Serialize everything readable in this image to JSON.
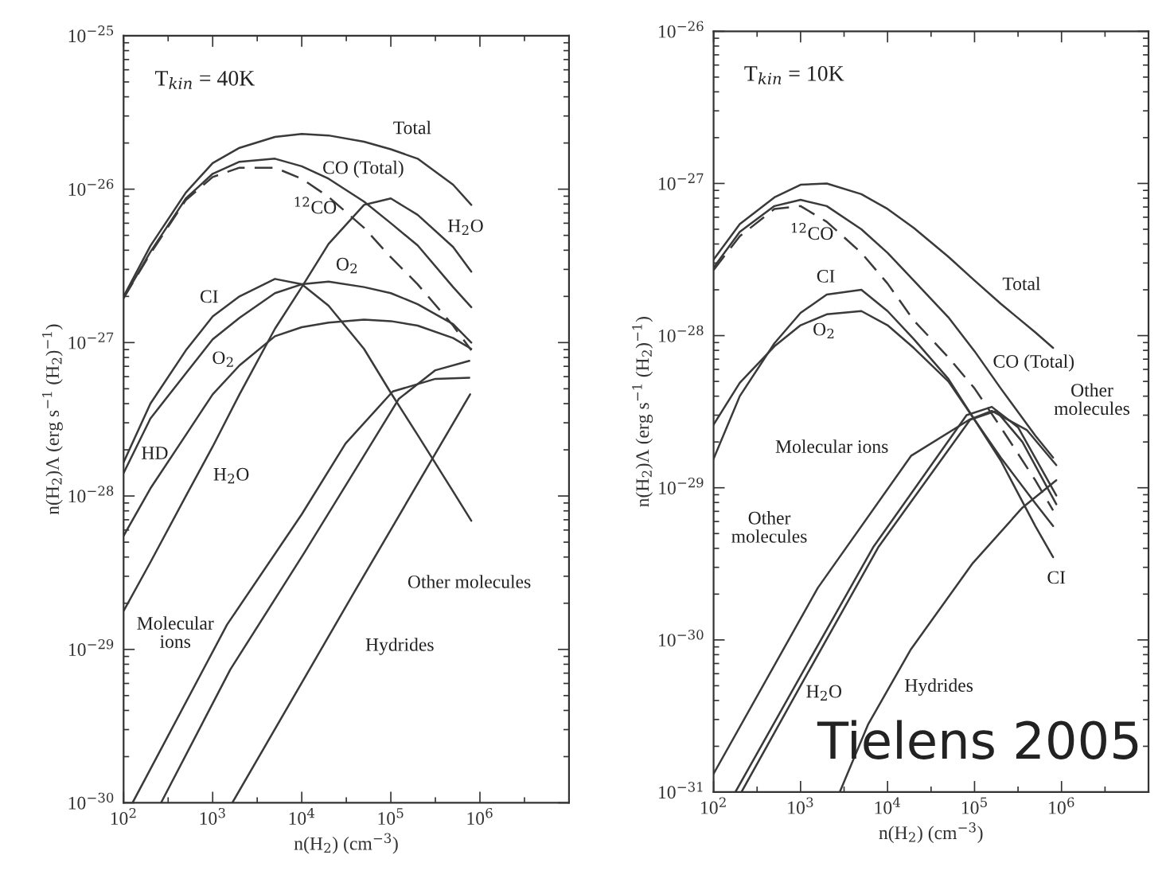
{
  "chart_data": [
    {
      "type": "line",
      "log": "xy",
      "grid": false,
      "line_style": "solid",
      "marker": "none",
      "xlabel": "n(H$_{2}$) (cm$^{−3}$)",
      "ylabel": "n(H$_{2}$)Λ (erg s$^{−1}$ (H$_{2}$)$^{−1}$)",
      "xlim": [
        100,
        10000000
      ],
      "ylim": [
        1e-30,
        1e-25
      ],
      "xticks": [
        {
          "value": 100,
          "label": "10$^{2}$"
        },
        {
          "value": 1000,
          "label": "10$^{3}$"
        },
        {
          "value": 10000,
          "label": "10$^{4}$"
        },
        {
          "value": 100000,
          "label": "10$^{5}$"
        },
        {
          "value": 1000000,
          "label": "10$^{6}$"
        }
      ],
      "yticks": [
        {
          "value": 1e-30,
          "label": "10$^{−30}$"
        },
        {
          "value": 1e-29,
          "label": "10$^{−29}$"
        },
        {
          "value": 1e-28,
          "label": "10$^{−28}$"
        },
        {
          "value": 1e-27,
          "label": "10$^{−27}$"
        },
        {
          "value": 1e-26,
          "label": "10$^{−26}$"
        },
        {
          "value": 1e-25,
          "label": "10$^{−25}$"
        }
      ],
      "x": [
        100,
        200,
        500,
        1000,
        2000,
        5000,
        10000,
        20000,
        50000,
        100000,
        200000,
        500000,
        800000
      ],
      "series": [
        {
          "color": "#3a3a3a",
          "values": [
            2e-27,
            4.27e-27,
            9.5e-27,
            1.48e-26,
            1.86e-26,
            2.19e-26,
            2.29e-26,
            2.24e-26,
            2.04e-26,
            1.82e-26,
            1.58e-26,
            1.07e-26,
            7.9e-27
          ]
        },
        {
          "color": "#3a3a3a",
          "values": [
            1.95e-27,
            3.9e-27,
            8.7e-27,
            1.26e-26,
            1.51e-26,
            1.58e-26,
            1.41e-26,
            1.17e-26,
            8.3e-27,
            6e-27,
            4.3e-27,
            2.3e-27,
            1.7e-27
          ]
        },
        {
          "color": "#3a3a3a",
          "line_style": "dashed",
          "values": [
            1.95e-27,
            3.8e-27,
            8.5e-27,
            1.2e-26,
            1.38e-26,
            1.38e-26,
            1.17e-26,
            8.9e-27,
            5.6e-27,
            3.6e-27,
            2.4e-27,
            1.29e-27,
            8.9e-28
          ]
        },
        {
          "color": "#3a3a3a",
          "values": [
            1.78e-29,
            3.7e-29,
            1e-28,
            2.1e-28,
            4.6e-28,
            1.23e-27,
            2.3e-27,
            4.4e-27,
            7.9e-27,
            8.7e-27,
            6.8e-27,
            4.2e-27,
            2.9e-27
          ]
        },
        {
          "color": "#3a3a3a",
          "values": [
            1.66e-28,
            4e-28,
            8.9e-28,
            1.48e-27,
            2e-27,
            2.6e-27,
            2.4e-27,
            1.74e-27,
            9.1e-28,
            4.7e-28,
            2.5e-28,
            1.07e-28,
            6.9e-29
          ]
        },
        {
          "color": "#3a3a3a",
          "values": [
            1.41e-28,
            3.2e-28,
            6.3e-28,
            1.05e-27,
            1.45e-27,
            2.1e-27,
            2.4e-27,
            2.5e-27,
            2.3e-27,
            2.1e-27,
            1.78e-27,
            1.32e-27,
            1e-27
          ]
        },
        {
          "color": "#3a3a3a",
          "values": [
            5.5e-29,
            1.12e-28,
            2.5e-28,
            4.6e-28,
            7.1e-28,
            1.1e-27,
            1.26e-27,
            1.35e-27,
            1.41e-27,
            1.38e-27,
            1.29e-27,
            1.07e-27,
            9.1e-28
          ]
        },
        {
          "color": "#3a3a3a",
          "x": [
            126,
            1450,
            10000,
            31000,
            105000,
            316000,
            760000
          ],
          "values": [
            1e-30,
            1.45e-29,
            7.6e-29,
            2.2e-28,
            4.8e-28,
            5.8e-28,
            5.9e-28
          ]
        },
        {
          "color": "#3a3a3a",
          "x": [
            263,
            1580,
            10500,
            37000,
            123000,
            316000,
            760000
          ],
          "values": [
            1e-30,
            7.4e-30,
            4.2e-29,
            1.38e-28,
            4.3e-28,
            6.6e-28,
            7.6e-28
          ]
        },
        {
          "color": "#3a3a3a",
          "x": [
            1660,
            42700,
            776000
          ],
          "values": [
            1e-30,
            2.6e-29,
            4.6e-28
          ]
        }
      ],
      "annotations": [
        "T$_{kin}$ = 40K",
        "Total",
        "CO (Total)",
        "$^{12}$CO",
        "H$_{2}$O",
        "O$_{2}$",
        "CI",
        "O$_{2}$",
        "HD",
        "H$_{2}$O",
        "Molecular\nions",
        "Other molecules",
        "Hydrides"
      ]
    },
    {
      "type": "line",
      "log": "xy",
      "grid": false,
      "line_style": "solid",
      "marker": "none",
      "xlabel": "n(H$_{2}$) (cm$^{−3}$)",
      "ylabel": "n(H$_{2}$)Λ (erg s$^{−1}$ (H$_{2}$)$^{−1}$)",
      "xlim": [
        100,
        10000000
      ],
      "ylim": [
        1e-31,
        1e-26
      ],
      "xticks": [
        {
          "value": 100,
          "label": "10$^{2}$"
        },
        {
          "value": 1000,
          "label": "10$^{3}$"
        },
        {
          "value": 10000,
          "label": "10$^{4}$"
        },
        {
          "value": 100000,
          "label": "10$^{5}$"
        },
        {
          "value": 1000000,
          "label": "10$^{6}$"
        }
      ],
      "yticks": [
        {
          "value": 1e-31,
          "label": "10$^{−31}$"
        },
        {
          "value": 1e-30,
          "label": "10$^{−30}$"
        },
        {
          "value": 1e-29,
          "label": "10$^{−29}$"
        },
        {
          "value": 1e-28,
          "label": "10$^{−28}$"
        },
        {
          "value": 1e-27,
          "label": "10$^{−27}$"
        },
        {
          "value": 1e-26,
          "label": "10$^{−26}$"
        }
      ],
      "x": [
        100,
        200,
        500,
        1000,
        2000,
        5000,
        10000,
        20000,
        50000,
        100000,
        200000,
        500000,
        800000
      ],
      "series": [
        {
          "color": "#3a3a3a",
          "values": [
            3.16e-28,
            5.4e-28,
            8.1e-28,
            9.8e-28,
            1e-27,
            8.5e-28,
            6.8e-28,
            5.1e-28,
            3.3e-28,
            2.3e-28,
            1.62e-28,
            1.05e-28,
            8.3e-29
          ]
        },
        {
          "color": "#3a3a3a",
          "values": [
            2.8e-28,
            4.8e-28,
            7.1e-28,
            7.8e-28,
            7.1e-28,
            5e-28,
            3.5e-28,
            2.3e-28,
            1.32e-28,
            7.9e-29,
            4.5e-29,
            2.2e-29,
            1.58e-29
          ]
        },
        {
          "color": "#3a3a3a",
          "line_style": "dashed",
          "values": [
            2.7e-28,
            4.5e-28,
            6.8e-28,
            7.1e-28,
            5.6e-28,
            3.5e-28,
            2.2e-28,
            1.26e-28,
            7.2e-29,
            4.5e-29,
            2.5e-29,
            1.12e-29,
            7.1e-30
          ]
        },
        {
          "color": "#3a3a3a",
          "values": [
            1.55e-29,
            4e-29,
            8.9e-29,
            1.41e-28,
            1.86e-28,
            2e-28,
            1.45e-28,
            9.5e-29,
            5.2e-29,
            2.8e-29,
            1.51e-29,
            5.6e-30,
            3.5e-30
          ]
        },
        {
          "color": "#3a3a3a",
          "values": [
            2.6e-29,
            4.9e-29,
            8.5e-29,
            1.17e-28,
            1.38e-28,
            1.45e-28,
            1.17e-28,
            8.3e-29,
            5e-29,
            2.8e-29,
            1.58e-29,
            7.9e-30,
            5.6e-30
          ]
        },
        {
          "color": "#3a3a3a",
          "x": [
            100,
            1580,
            18600,
            87000,
            158000,
            398000,
            871000
          ],
          "values": [
            1.32e-31,
            2.2e-30,
            1.62e-29,
            2.8e-29,
            3.2e-29,
            2.4e-29,
            1.41e-29
          ]
        },
        {
          "color": "#3a3a3a",
          "x": [
            178,
            1000,
            6900,
            81000,
            158000,
            316000,
            871000
          ],
          "values": [
            1e-31,
            5.8e-31,
            4.1e-30,
            3e-29,
            3.4e-29,
            2.5e-29,
            8.9e-30
          ]
        },
        {
          "color": "#3a3a3a",
          "x": [
            209,
            1000,
            7900,
            89000,
            178000,
            355000,
            871000
          ],
          "values": [
            1e-31,
            5e-31,
            4.1e-30,
            2.8e-29,
            3.2e-29,
            2e-29,
            7.8e-30
          ]
        },
        {
          "color": "#3a3a3a",
          "x": [
            2820,
            6000,
            18600,
            95500,
            355000,
            871000
          ],
          "values": [
            1e-31,
            2.8e-31,
            8.7e-31,
            3.2e-30,
            7.4e-30,
            1.12e-29
          ]
        }
      ],
      "annotations": [
        "T$_{kin}$ = 10K",
        "Tielens 2005",
        "$^{12}$CO",
        "Total",
        "CI",
        "O$_{2}$",
        "CO (Total)",
        "Other\nmolecules",
        "Molecular ions",
        "Other\nmolecules",
        "CI",
        "H$_{2}$O",
        "Hydrides"
      ]
    }
  ]
}
